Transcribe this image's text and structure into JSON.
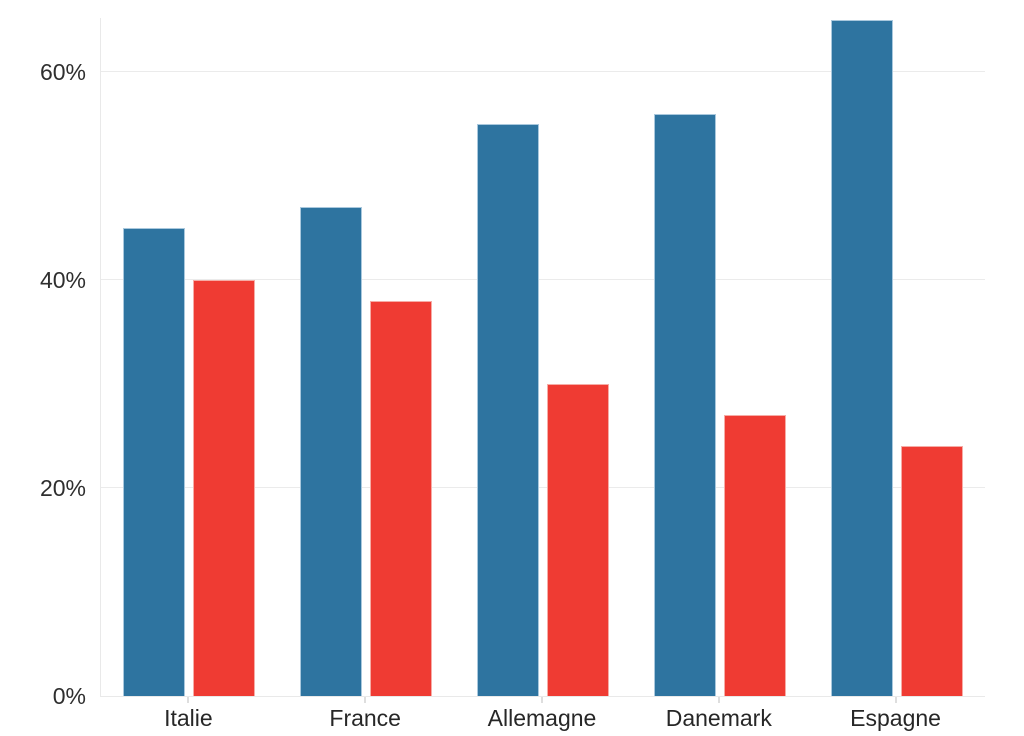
{
  "chart_data": {
    "type": "bar",
    "title": "",
    "xlabel": "",
    "ylabel": "",
    "unit": "%",
    "categories": [
      "Italie",
      "France",
      "Allemagne",
      "Danemark",
      "Espagne"
    ],
    "series": [
      {
        "color": "#2E74A0",
        "edge_color": "#A9C8DD",
        "values": [
          45,
          47,
          55,
          56,
          65
        ]
      },
      {
        "color": "#EF3B33",
        "edge_color": "#F6ACA6",
        "values": [
          40,
          38,
          30,
          27,
          24
        ]
      }
    ],
    "y_ticks": [
      0,
      20,
      40,
      60
    ],
    "y_tick_labels": [
      "0%",
      "20%",
      "40%",
      "60%"
    ],
    "ylim": [
      0,
      65.2
    ],
    "grid": "horizontal",
    "grid_color": "#ebebeb",
    "axis_line_color": "#e9e9e9",
    "tick_color": "#dedede",
    "tick_label_color": "#2f2f2f",
    "legend": "none",
    "background": "#ffffff"
  }
}
